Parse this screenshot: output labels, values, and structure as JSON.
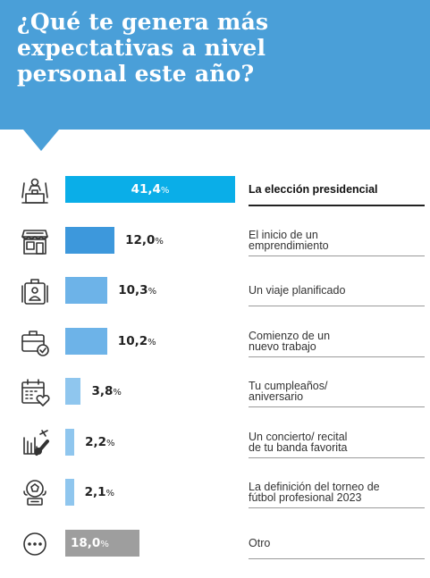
{
  "title": "¿Qué te genera más expectativas a nivel personal este año?",
  "colors": {
    "header": "#4a9fd8",
    "bar_top": "#0aaee8",
    "bar_high": "#3d98dc",
    "bar_mid": "#6db3e8",
    "bar_low": "#8fc6ee",
    "bar_other": "#9e9e9e"
  },
  "chart_data": {
    "type": "bar",
    "orientation": "horizontal",
    "unit": "%",
    "categories": [
      "La elección presidencial",
      "El inicio de un emprendimiento",
      "Un viaje planificado",
      "Comienzo de un nuevo trabajo",
      "Tu cumpleaños/ aniversario",
      "Un concierto/ recital de tu banda favorita",
      "La definición del torneo de fútbol profesional 2023",
      "Otro"
    ],
    "values": [
      41.4,
      12.0,
      10.3,
      10.2,
      3.8,
      2.2,
      2.1,
      18.0
    ],
    "value_labels": [
      "41,4",
      "12,0",
      "10,3",
      "10,2",
      "3,8",
      "2,2",
      "2,1",
      "18,0"
    ],
    "label_lines": [
      [
        "La elección presidencial"
      ],
      [
        "El inicio de un",
        "emprendimiento"
      ],
      [
        "Un viaje planificado"
      ],
      [
        "Comienzo de un",
        "nuevo trabajo"
      ],
      [
        "Tu cumpleaños/",
        "aniversario"
      ],
      [
        "Un concierto/ recital",
        "de tu banda favorita"
      ],
      [
        "La definición del torneo de",
        "fútbol profesional 2023"
      ],
      [
        "Otro"
      ]
    ],
    "icons": [
      "podium-speaker-icon",
      "storefront-icon",
      "suitcase-icon",
      "briefcase-check-icon",
      "calendar-heart-icon",
      "rock-hand-guitar-icon",
      "soccer-ball-trophy-icon",
      "more-dots-icon"
    ],
    "bar_colors": [
      "#0aaee8",
      "#3d98dc",
      "#6db3e8",
      "#6db3e8",
      "#8fc6ee",
      "#8fc6ee",
      "#8fc6ee",
      "#9e9e9e"
    ],
    "highlighted_index": 0,
    "xlim": [
      0,
      41.4
    ]
  }
}
